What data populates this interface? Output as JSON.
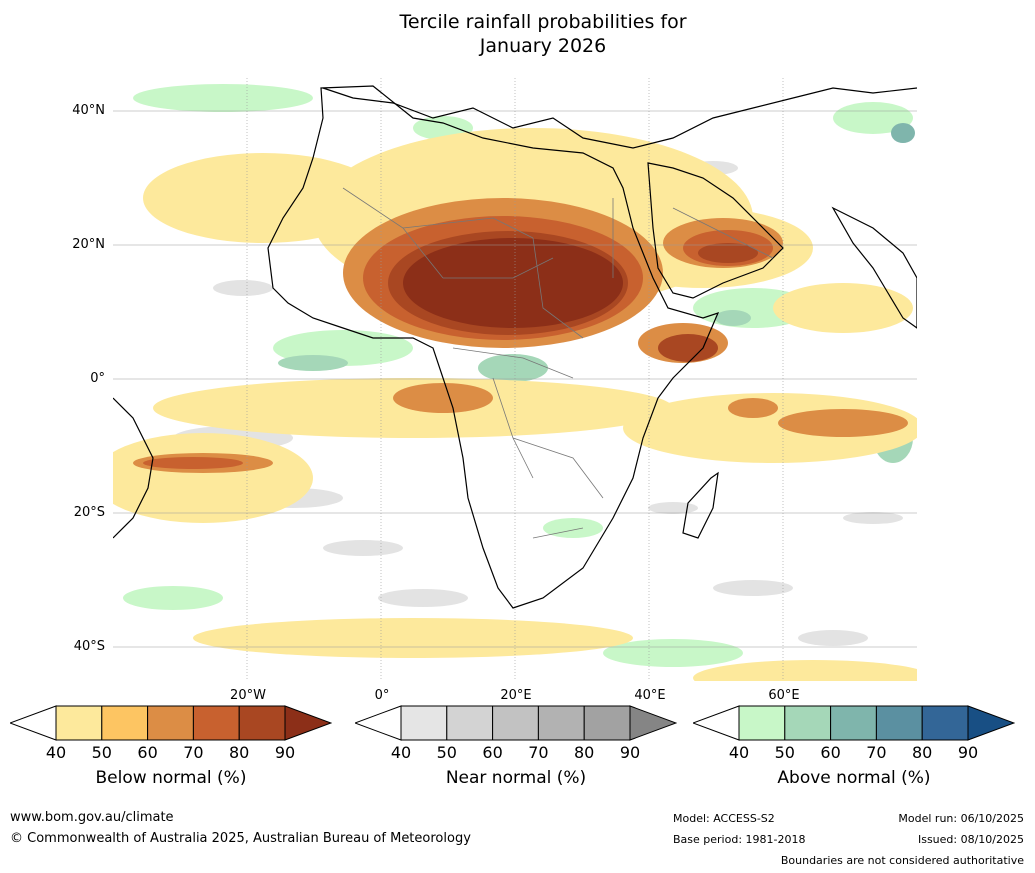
{
  "title_line1": "Tercile rainfall probabilities for",
  "title_line2": "January 2026",
  "lat_labels": [
    "40°N",
    "20°N",
    "0°",
    "20°S",
    "40°S"
  ],
  "lon_labels": [
    "20°W",
    "0°",
    "20°E",
    "40°E",
    "60°E"
  ],
  "colorbars": [
    {
      "name": "below",
      "label": "Below normal (%)",
      "ticks": [
        "40",
        "50",
        "60",
        "70",
        "80",
        "90"
      ],
      "colors": [
        "#fde99c",
        "#fdc562",
        "#dc8d45",
        "#c8612f",
        "#a94722",
        "#8c2f18"
      ]
    },
    {
      "name": "near",
      "label": "Near normal (%)",
      "ticks": [
        "40",
        "50",
        "60",
        "70",
        "80",
        "90"
      ],
      "colors": [
        "#e5e5e5",
        "#d3d3d3",
        "#c2c2c2",
        "#b2b2b2",
        "#a2a2a2",
        "#858585"
      ]
    },
    {
      "name": "above",
      "label": "Above normal (%)",
      "ticks": [
        "40",
        "50",
        "60",
        "70",
        "80",
        "90"
      ],
      "colors": [
        "#c8f7c8",
        "#a5d7b8",
        "#7fb5ac",
        "#5b90a1",
        "#336697",
        "#184f84"
      ]
    }
  ],
  "footer": {
    "website": "www.bom.gov.au/climate",
    "copyright": "© Commonwealth of Australia 2025, Australian Bureau of Meteorology",
    "model": "Model: ACCESS-S2",
    "base_period": "Base period: 1981-2018",
    "model_run": "Model run: 06/10/2025",
    "issued": "Issued: 08/10/2025",
    "disclaimer": "Boundaries are not considered authoritative"
  }
}
